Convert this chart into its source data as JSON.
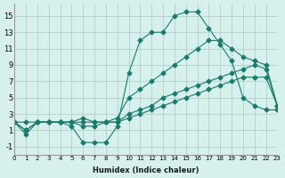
{
  "xlabel": "Humidex (Indice chaleur)",
  "bg_color": "#d6f0ec",
  "grid_color": "#b0c8c4",
  "line_color": "#1a7a6e",
  "x_ticks": [
    0,
    1,
    2,
    3,
    4,
    5,
    6,
    7,
    8,
    9,
    10,
    11,
    12,
    13,
    14,
    15,
    16,
    17,
    18,
    19,
    20,
    21,
    22,
    23
  ],
  "y_ticks": [
    -1,
    1,
    3,
    5,
    7,
    9,
    11,
    13,
    15
  ],
  "xlim": [
    0,
    23
  ],
  "ylim": [
    -2.0,
    16.5
  ],
  "series": [
    [
      2,
      2,
      2,
      2,
      2,
      2,
      2,
      2,
      2,
      2,
      2.5,
      3,
      3.5,
      4,
      4.5,
      5,
      5.5,
      6,
      6.5,
      7,
      7.5,
      7.5,
      7.5,
      4
    ],
    [
      2,
      1,
      2,
      2,
      2,
      2,
      1.5,
      1.5,
      2,
      2,
      3,
      3.5,
      4,
      5,
      5.5,
      6,
      6.5,
      7,
      7.5,
      8,
      8.5,
      9,
      8.5,
      4
    ],
    [
      2,
      1,
      2,
      2,
      2,
      2,
      2.5,
      2,
      2,
      2.5,
      5,
      6,
      7,
      8,
      9,
      10,
      11,
      12,
      12,
      11,
      10,
      9.5,
      9,
      4
    ],
    [
      2,
      0.5,
      2,
      2,
      2,
      1.5,
      -0.5,
      -0.5,
      -0.5,
      1.5,
      8,
      12,
      13,
      13,
      15,
      15.5,
      15.5,
      13.5,
      11.5,
      9.5,
      5,
      4,
      3.5,
      3.5
    ]
  ]
}
